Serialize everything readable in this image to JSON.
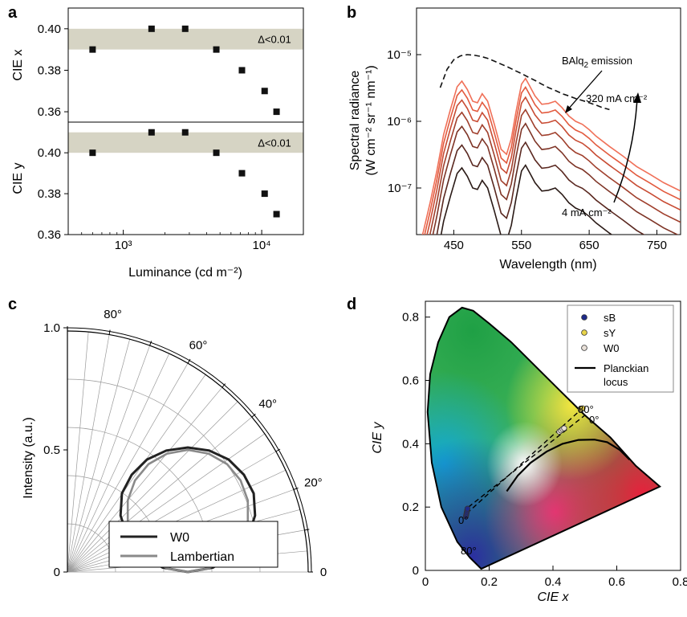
{
  "figure": {
    "panels": [
      "a",
      "b",
      "c",
      "d"
    ]
  },
  "chart_data": [
    {
      "panel": "a",
      "type": "scatter",
      "xlabel": "Luminance (cd m⁻²)",
      "xscale": "log",
      "xlim": [
        400,
        20000
      ],
      "x_ticklabels": [
        "10³",
        "10⁴"
      ],
      "x_tickvalues": [
        1000,
        10000
      ],
      "subplots": [
        {
          "ylabel": "CIE x",
          "ylim": [
            0.355,
            0.41
          ],
          "y_ticks": [
            0.36,
            0.38,
            0.4
          ],
          "y_ticklabels": [
            "0.36",
            "0.38",
            "0.40"
          ],
          "band": [
            0.39,
            0.4
          ],
          "band_label": "Δ<0.01",
          "band_color": "#d6d4c4",
          "marker_color": "#111111",
          "x": [
            600,
            1600,
            2800,
            4700,
            7200,
            10500,
            12800
          ],
          "y": [
            0.39,
            0.4,
            0.4,
            0.39,
            0.38,
            0.37,
            0.36
          ]
        },
        {
          "ylabel": "CIE y",
          "ylim": [
            0.36,
            0.415
          ],
          "y_ticks": [
            0.36,
            0.38,
            0.4
          ],
          "y_ticklabels": [
            "0.36",
            "0.38",
            "0.40"
          ],
          "band": [
            0.4,
            0.41
          ],
          "band_label": "Δ<0.01",
          "band_color": "#d6d4c4",
          "marker_color": "#111111",
          "x": [
            600,
            1600,
            2800,
            4700,
            7200,
            10500,
            12800
          ],
          "y": [
            0.4,
            0.41,
            0.41,
            0.4,
            0.39,
            0.38,
            0.37
          ]
        }
      ]
    },
    {
      "panel": "b",
      "type": "line",
      "xlabel": "Wavelength (nm)",
      "ylabel_line1": "Spectral radiance",
      "ylabel_line2": "(W cm⁻² sr⁻¹ nm⁻¹)",
      "xlim": [
        395,
        785
      ],
      "x_ticks": [
        450,
        550,
        650,
        750
      ],
      "yscale": "log",
      "ylim": [
        2e-08,
        5e-05
      ],
      "y_ticks": [
        1e-07,
        1e-06,
        1e-05
      ],
      "y_ticklabels": [
        "10⁻⁷",
        "10⁻⁶",
        "10⁻⁵"
      ],
      "shape": {
        "x": [
          395,
          405,
          415,
          425,
          435,
          445,
          455,
          462,
          470,
          478,
          485,
          492,
          500,
          510,
          520,
          528,
          535,
          542,
          550,
          556,
          562,
          570,
          580,
          590,
          600,
          610,
          620,
          630,
          640,
          650,
          660,
          680,
          700,
          720,
          740,
          760,
          785
        ],
        "y": [
          1e-08,
          2.2e-08,
          6e-08,
          1.8e-07,
          6.3e-07,
          1.5e-06,
          3.3e-06,
          4e-06,
          3e-06,
          2e-06,
          1.9e-06,
          2.6e-06,
          2e-06,
          9e-07,
          3.8e-07,
          3.2e-07,
          5.5e-07,
          1.4e-06,
          3.6e-06,
          4.4e-06,
          3.4e-06,
          2.4e-06,
          1.8e-06,
          1.85e-06,
          2e-06,
          1.6e-06,
          1.2e-06,
          1e-06,
          9e-07,
          7.5e-07,
          6e-07,
          4.2e-07,
          3e-07,
          2.1e-07,
          1.6e-07,
          1.2e-07,
          9e-08
        ]
      },
      "series_scales": [
        0.05,
        0.11,
        0.21,
        0.34,
        0.52,
        0.74,
        1.0
      ],
      "series_colors": [
        "#2a1a16",
        "#5a2820",
        "#7e3426",
        "#a03f2c",
        "#c84c34",
        "#e25a3e",
        "#f07058"
      ],
      "baqi_emission": {
        "x": [
          430,
          440,
          450,
          460,
          470,
          480,
          490,
          500,
          510,
          520,
          530,
          540,
          550,
          560,
          570,
          580,
          590,
          600,
          610,
          620,
          630,
          640,
          650,
          660,
          670,
          680
        ],
        "y": [
          3.2e-06,
          6e-06,
          8.4e-06,
          9.6e-06,
          1e-05,
          9.8e-06,
          9.4e-06,
          8.8e-06,
          8e-06,
          7.2e-06,
          6.5e-06,
          5.8e-06,
          5.2e-06,
          4.6e-06,
          4.1e-06,
          3.6e-06,
          3.2e-06,
          2.9e-06,
          2.6e-06,
          2.4e-06,
          2.2e-06,
          2.05e-06,
          1.9e-06,
          1.75e-06,
          1.6e-06,
          1.5e-06
        ]
      },
      "annotations": {
        "baqi_prefix": "BAlq",
        "baqi_sub": "2",
        "baqi_suffix": " emission",
        "high_current": "320 mA cm⁻²",
        "low_current": "4 mA cm⁻²"
      }
    },
    {
      "panel": "c",
      "type": "line",
      "subtype": "polar",
      "ylabel": "Intensity (a.u.)",
      "r_ticklabels": [
        "0",
        "0.5",
        "1.0"
      ],
      "r_ticks": [
        0,
        0.5,
        1.0
      ],
      "angle_ticklabels": [
        "80°",
        "60°",
        "40°",
        "20°"
      ],
      "angle_ticks": [
        80,
        60,
        40,
        20
      ],
      "right_zero_label": "0",
      "series": [
        {
          "name": "W0",
          "color": "#222222",
          "angles_deg": [
            0,
            10,
            20,
            30,
            40,
            50,
            60,
            70,
            80,
            90
          ],
          "r": [
            0.51,
            0.505,
            0.49,
            0.46,
            0.42,
            0.36,
            0.285,
            0.2,
            0.105,
            0.0
          ]
        },
        {
          "name": "Lambertian",
          "color": "#8a8a8a",
          "angles_deg": [
            0,
            10,
            20,
            30,
            40,
            50,
            60,
            70,
            80,
            90
          ],
          "r": [
            0.5,
            0.492,
            0.47,
            0.433,
            0.383,
            0.321,
            0.25,
            0.171,
            0.087,
            0.0
          ]
        }
      ]
    },
    {
      "panel": "d",
      "type": "scatter",
      "subtype": "CIE 1931 chromaticity diagram",
      "xlabel": "CIE x",
      "ylabel": "CIE y",
      "xlim": [
        0,
        0.8
      ],
      "ylim": [
        0,
        0.85
      ],
      "x_ticks": [
        0,
        0.2,
        0.4,
        0.6,
        0.8
      ],
      "x_ticklabels": [
        "0",
        "0.2",
        "0.4",
        "0.6",
        "0.8"
      ],
      "y_ticks": [
        0,
        0.2,
        0.4,
        0.6,
        0.8
      ],
      "y_ticklabels": [
        "0",
        "0.2",
        "0.4",
        "0.6",
        "0.8"
      ],
      "locus": [
        [
          0.175,
          0.005
        ],
        [
          0.14,
          0.04
        ],
        [
          0.1,
          0.09
        ],
        [
          0.05,
          0.2
        ],
        [
          0.02,
          0.34
        ],
        [
          0.007,
          0.5
        ],
        [
          0.015,
          0.62
        ],
        [
          0.04,
          0.72
        ],
        [
          0.075,
          0.8
        ],
        [
          0.115,
          0.83
        ],
        [
          0.15,
          0.82
        ],
        [
          0.2,
          0.78
        ],
        [
          0.27,
          0.72
        ],
        [
          0.35,
          0.64
        ],
        [
          0.42,
          0.57
        ],
        [
          0.5,
          0.49
        ],
        [
          0.58,
          0.42
        ],
        [
          0.66,
          0.33
        ],
        [
          0.735,
          0.265
        ],
        [
          0.175,
          0.005
        ]
      ],
      "planckian_locus": [
        [
          0.255,
          0.25
        ],
        [
          0.29,
          0.3
        ],
        [
          0.33,
          0.34
        ],
        [
          0.38,
          0.375
        ],
        [
          0.43,
          0.4
        ],
        [
          0.48,
          0.412
        ],
        [
          0.53,
          0.413
        ],
        [
          0.57,
          0.405
        ],
        [
          0.61,
          0.38
        ],
        [
          0.64,
          0.35
        ]
      ],
      "dashed_lines": [
        [
          [
            0.13,
            0.18
          ],
          [
            0.49,
            0.51
          ]
        ],
        [
          [
            0.135,
            0.2
          ],
          [
            0.5,
            0.49
          ]
        ]
      ],
      "series": [
        {
          "name": "sB",
          "color": "#1f2a8a",
          "points": [
            [
              0.127,
              0.17
            ],
            [
              0.128,
              0.175
            ],
            [
              0.129,
              0.18
            ],
            [
              0.13,
              0.185
            ],
            [
              0.131,
              0.19
            ],
            [
              0.132,
              0.195
            ]
          ]
        },
        {
          "name": "sY",
          "color": "#e8d44a",
          "points": [
            [
              0.487,
              0.508
            ],
            [
              0.49,
              0.51
            ],
            [
              0.493,
              0.512
            ]
          ]
        },
        {
          "name": "W0",
          "color": "#e8e0d8",
          "points": [
            [
              0.42,
              0.438
            ],
            [
              0.425,
              0.442
            ],
            [
              0.43,
              0.446
            ],
            [
              0.435,
              0.449
            ]
          ]
        }
      ],
      "legend_labels": [
        "sB",
        "sY",
        "W0",
        "Planckian",
        "locus"
      ],
      "annotations": {
        "deg0_blue": "0°",
        "deg80_blue": "80°",
        "deg80_yellow": "80°",
        "deg0_yellow": "0°"
      }
    }
  ]
}
